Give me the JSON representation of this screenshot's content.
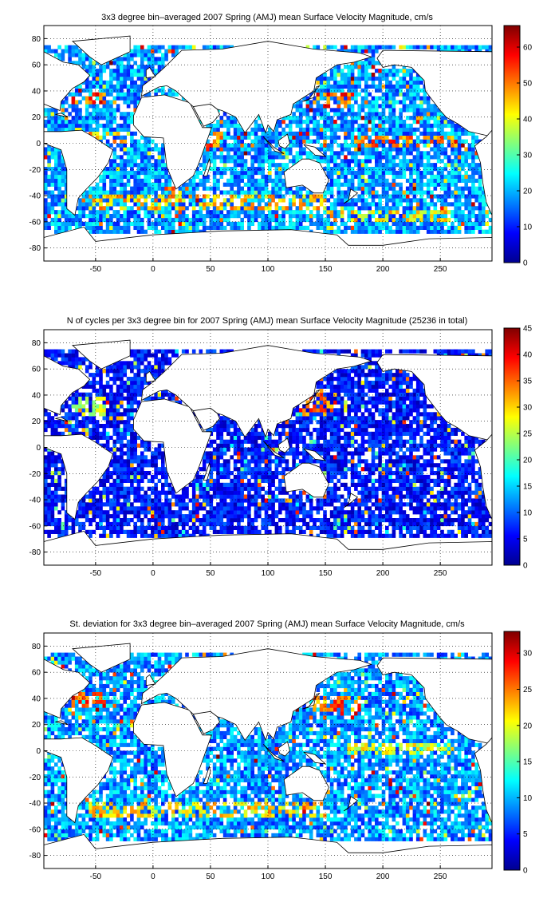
{
  "chart_data": [
    {
      "type": "heatmap",
      "title": "3x3 degree bin–averaged 2007 Spring (AMJ) mean Surface Velocity Magnitude, cm/s",
      "xlim": [
        -95,
        295
      ],
      "ylim": [
        -90,
        90
      ],
      "xticks": [
        -50,
        0,
        50,
        100,
        150,
        200,
        250
      ],
      "yticks": [
        -80,
        -60,
        -40,
        -20,
        0,
        20,
        40,
        60,
        80
      ],
      "clim": [
        0,
        66
      ],
      "cticks": [
        0,
        10,
        20,
        30,
        40,
        50,
        60
      ],
      "grid": true,
      "colormap": "jet",
      "bin_size_deg": 3,
      "seed": 11,
      "hot_regions": [
        {
          "lon": [
            -75,
            -40
          ],
          "lat": [
            30,
            42
          ],
          "value": 60
        },
        {
          "lon": [
            -65,
            -20
          ],
          "lat": [
            0,
            8
          ],
          "value": 50
        },
        {
          "lon": [
            140,
            175
          ],
          "lat": [
            28,
            40
          ],
          "value": 58
        },
        {
          "lon": [
            175,
            265
          ],
          "lat": [
            -3,
            5
          ],
          "value": 55
        },
        {
          "lon": [
            -55,
            150
          ],
          "lat": [
            -52,
            -38
          ],
          "value": 50
        },
        {
          "lon": [
            45,
            60
          ],
          "lat": [
            -5,
            10
          ],
          "value": 55
        },
        {
          "lon": [
            10,
            30
          ],
          "lat": [
            -40,
            -33
          ],
          "value": 55
        },
        {
          "lon": [
            150,
            260
          ],
          "lat": [
            -60,
            -50
          ],
          "value": 48
        }
      ]
    },
    {
      "type": "heatmap",
      "title": "N of cycles per 3x3 degree bin for 2007 Spring (AMJ) mean Surface Velocity Magnitude (25236 in total)",
      "xlim": [
        -95,
        295
      ],
      "ylim": [
        -90,
        90
      ],
      "xticks": [
        -50,
        0,
        50,
        100,
        150,
        200,
        250
      ],
      "yticks": [
        -80,
        -60,
        -40,
        -20,
        0,
        20,
        40,
        60,
        80
      ],
      "clim": [
        0,
        45
      ],
      "cticks": [
        0,
        5,
        10,
        15,
        20,
        25,
        30,
        35,
        40,
        45
      ],
      "grid": true,
      "colormap": "jet",
      "bin_size_deg": 3,
      "seed": 23,
      "hot_regions": [
        {
          "lon": [
            130,
            160
          ],
          "lat": [
            25,
            45
          ],
          "value": 38
        },
        {
          "lon": [
            -70,
            -40
          ],
          "lat": [
            25,
            40
          ],
          "value": 28
        }
      ]
    },
    {
      "type": "heatmap",
      "title": "St. deviation for 3x3 degree bin–averaged 2007 Spring (AMJ) mean Surface Velocity Magnitude, cm/s",
      "xlim": [
        -95,
        295
      ],
      "ylim": [
        -90,
        90
      ],
      "xticks": [
        -50,
        0,
        50,
        100,
        150,
        200,
        250
      ],
      "yticks": [
        -80,
        -60,
        -40,
        -20,
        0,
        20,
        40,
        60,
        80
      ],
      "clim": [
        0,
        33
      ],
      "cticks": [
        0,
        5,
        10,
        15,
        20,
        25,
        30
      ],
      "grid": true,
      "colormap": "jet",
      "bin_size_deg": 3,
      "seed": 37,
      "hot_regions": [
        {
          "lon": [
            -80,
            -45
          ],
          "lat": [
            33,
            45
          ],
          "value": 30
        },
        {
          "lon": [
            140,
            180
          ],
          "lat": [
            30,
            42
          ],
          "value": 28
        },
        {
          "lon": [
            170,
            265
          ],
          "lat": [
            -3,
            5
          ],
          "value": 22
        },
        {
          "lon": [
            -55,
            150
          ],
          "lat": [
            -52,
            -40
          ],
          "value": 24
        }
      ]
    }
  ]
}
